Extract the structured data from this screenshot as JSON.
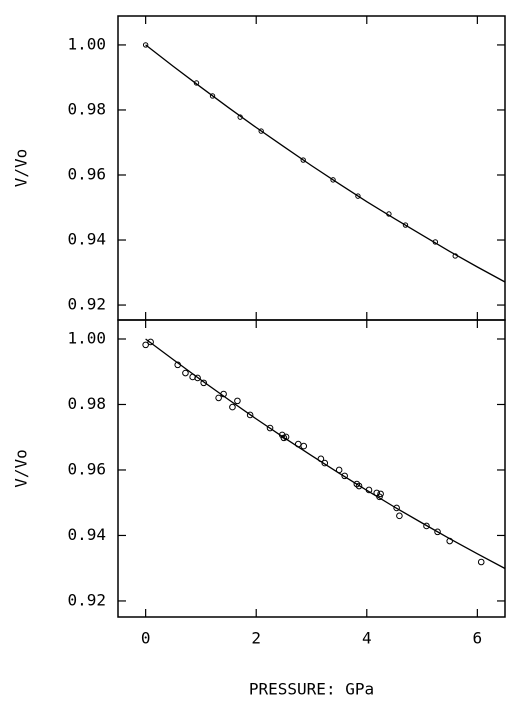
{
  "chart_data": [
    {
      "type": "scatter",
      "ylabel": "V/Vo",
      "xlim": [
        -0.5,
        6.5
      ],
      "ylim": [
        0.9154,
        1.0089
      ],
      "yticks": [
        {
          "value": 0.92,
          "label": "0.92"
        },
        {
          "value": 0.94,
          "label": "0.94"
        },
        {
          "value": 0.96,
          "label": "0.96"
        },
        {
          "value": 0.98,
          "label": "0.98"
        },
        {
          "value": 1.0,
          "label": "1.00"
        }
      ],
      "series": [
        {
          "style": "markers",
          "color": "#000000",
          "x": [
            0,
            0.92,
            1.21,
            1.71,
            2.09,
            2.85,
            3.39,
            3.84,
            4.4,
            4.7,
            5.24,
            5.6
          ],
          "values": [
            1.0,
            0.9883,
            0.9843,
            0.9778,
            0.9735,
            0.9646,
            0.9585,
            0.9535,
            0.948,
            0.9446,
            0.9394,
            0.9351
          ]
        },
        {
          "style": "line",
          "color": "#000000",
          "x": [
            0,
            0.5,
            1,
            1.5,
            2,
            2.5,
            3,
            3.5,
            4,
            4.5,
            5,
            5.5,
            6,
            6.5
          ],
          "values": [
            1.0,
            0.9934,
            0.987,
            0.9807,
            0.9746,
            0.9687,
            0.9629,
            0.9573,
            0.9518,
            0.9466,
            0.9415,
            0.9365,
            0.9317,
            0.9271
          ]
        }
      ]
    },
    {
      "type": "scatter",
      "ylabel": "V/Vo",
      "xlabel": "PRESSURE: GPa",
      "xlim": [
        -0.5,
        6.5
      ],
      "ylim": [
        0.9151,
        1.0058
      ],
      "xticks": [
        0,
        2,
        4,
        6
      ],
      "yticks": [
        {
          "value": 0.92,
          "label": "0.92"
        },
        {
          "value": 0.94,
          "label": "0.94"
        },
        {
          "value": 0.96,
          "label": "0.96"
        },
        {
          "value": 0.98,
          "label": "0.98"
        },
        {
          "value": 1.0,
          "label": "1.00"
        }
      ],
      "series": [
        {
          "style": "markers",
          "color": "#000000",
          "x": [
            0,
            0.09,
            0.58,
            0.72,
            0.85,
            0.94,
            1.05,
            1.32,
            1.41,
            1.57,
            1.66,
            1.89,
            2.25,
            2.47,
            2.5,
            2.54,
            2.76,
            2.86,
            3.17,
            3.24,
            3.5,
            3.6,
            3.82,
            3.86,
            4.04,
            4.18,
            4.23,
            4.25,
            4.54,
            4.59,
            5.08,
            5.28,
            5.5,
            6.07
          ],
          "values": [
            0.9982,
            0.9991,
            0.9921,
            0.9896,
            0.9884,
            0.9881,
            0.9866,
            0.982,
            0.9832,
            0.9792,
            0.9811,
            0.9768,
            0.9728,
            0.9707,
            0.9698,
            0.9701,
            0.9679,
            0.9673,
            0.9634,
            0.9621,
            0.96,
            0.9582,
            0.9557,
            0.9551,
            0.9539,
            0.953,
            0.9518,
            0.9527,
            0.9484,
            0.946,
            0.9429,
            0.9411,
            0.9383,
            0.9319
          ]
        },
        {
          "style": "line",
          "color": "#000000",
          "x": [
            0,
            0.5,
            1,
            1.5,
            2,
            2.5,
            3,
            3.5,
            4,
            4.5,
            5,
            5.5,
            6,
            6.5
          ],
          "values": [
            1.0,
            0.9937,
            0.9875,
            0.9815,
            0.9756,
            0.9699,
            0.9644,
            0.959,
            0.9538,
            0.9487,
            0.9438,
            0.939,
            0.9344,
            0.9299
          ]
        }
      ]
    }
  ]
}
